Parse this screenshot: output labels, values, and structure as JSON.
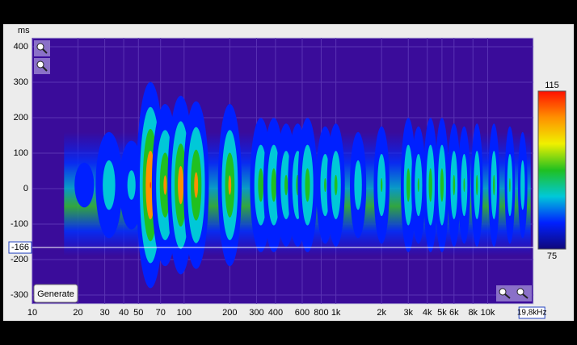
{
  "chart_data": {
    "type": "spectrogram",
    "y_unit": "ms",
    "xlim": [
      10,
      20000
    ],
    "log_x": true,
    "ylim": [
      -325,
      425
    ],
    "xticks": [
      10,
      20,
      30,
      40,
      50,
      70,
      100,
      200,
      300,
      400,
      600,
      800,
      {
        "value": 1000,
        "label": "1k"
      },
      {
        "value": 2000,
        "label": "2k"
      },
      {
        "value": 3000,
        "label": "3k"
      },
      {
        "value": 4000,
        "label": "4k"
      },
      {
        "value": 5000,
        "label": "5k"
      },
      {
        "value": 6000,
        "label": "6k"
      },
      {
        "value": 8000,
        "label": "8k"
      },
      {
        "value": 10000,
        "label": "10k"
      }
    ],
    "yticks": [
      -300,
      -200,
      -100,
      0,
      100,
      200,
      300,
      400
    ],
    "grid": true,
    "clim": [
      75,
      115
    ],
    "colors": [
      "#10087a",
      "#0020ff",
      "#00c8d8",
      "#20c020",
      "#f0f000",
      "#ff9000",
      "#ff1000"
    ],
    "cursor_y": {
      "value": -166,
      "label": "-166"
    },
    "cursor_x": {
      "value": 19800,
      "label": "19,8kHz"
    },
    "button": "Generate",
    "x": [
      22,
      32,
      45,
      60,
      75,
      95,
      120,
      200,
      320,
      390,
      470,
      560,
      650,
      850,
      1000,
      1400,
      2000,
      3000,
      3500,
      4200,
      5000,
      6000,
      7000,
      8500,
      11000,
      14000,
      17000
    ],
    "values": [
      85,
      95,
      92,
      113,
      105,
      108,
      106,
      105,
      100,
      100,
      98,
      98,
      100,
      97,
      98,
      95,
      97,
      100,
      97,
      100,
      100,
      98,
      97,
      98,
      98,
      97,
      95
    ]
  }
}
